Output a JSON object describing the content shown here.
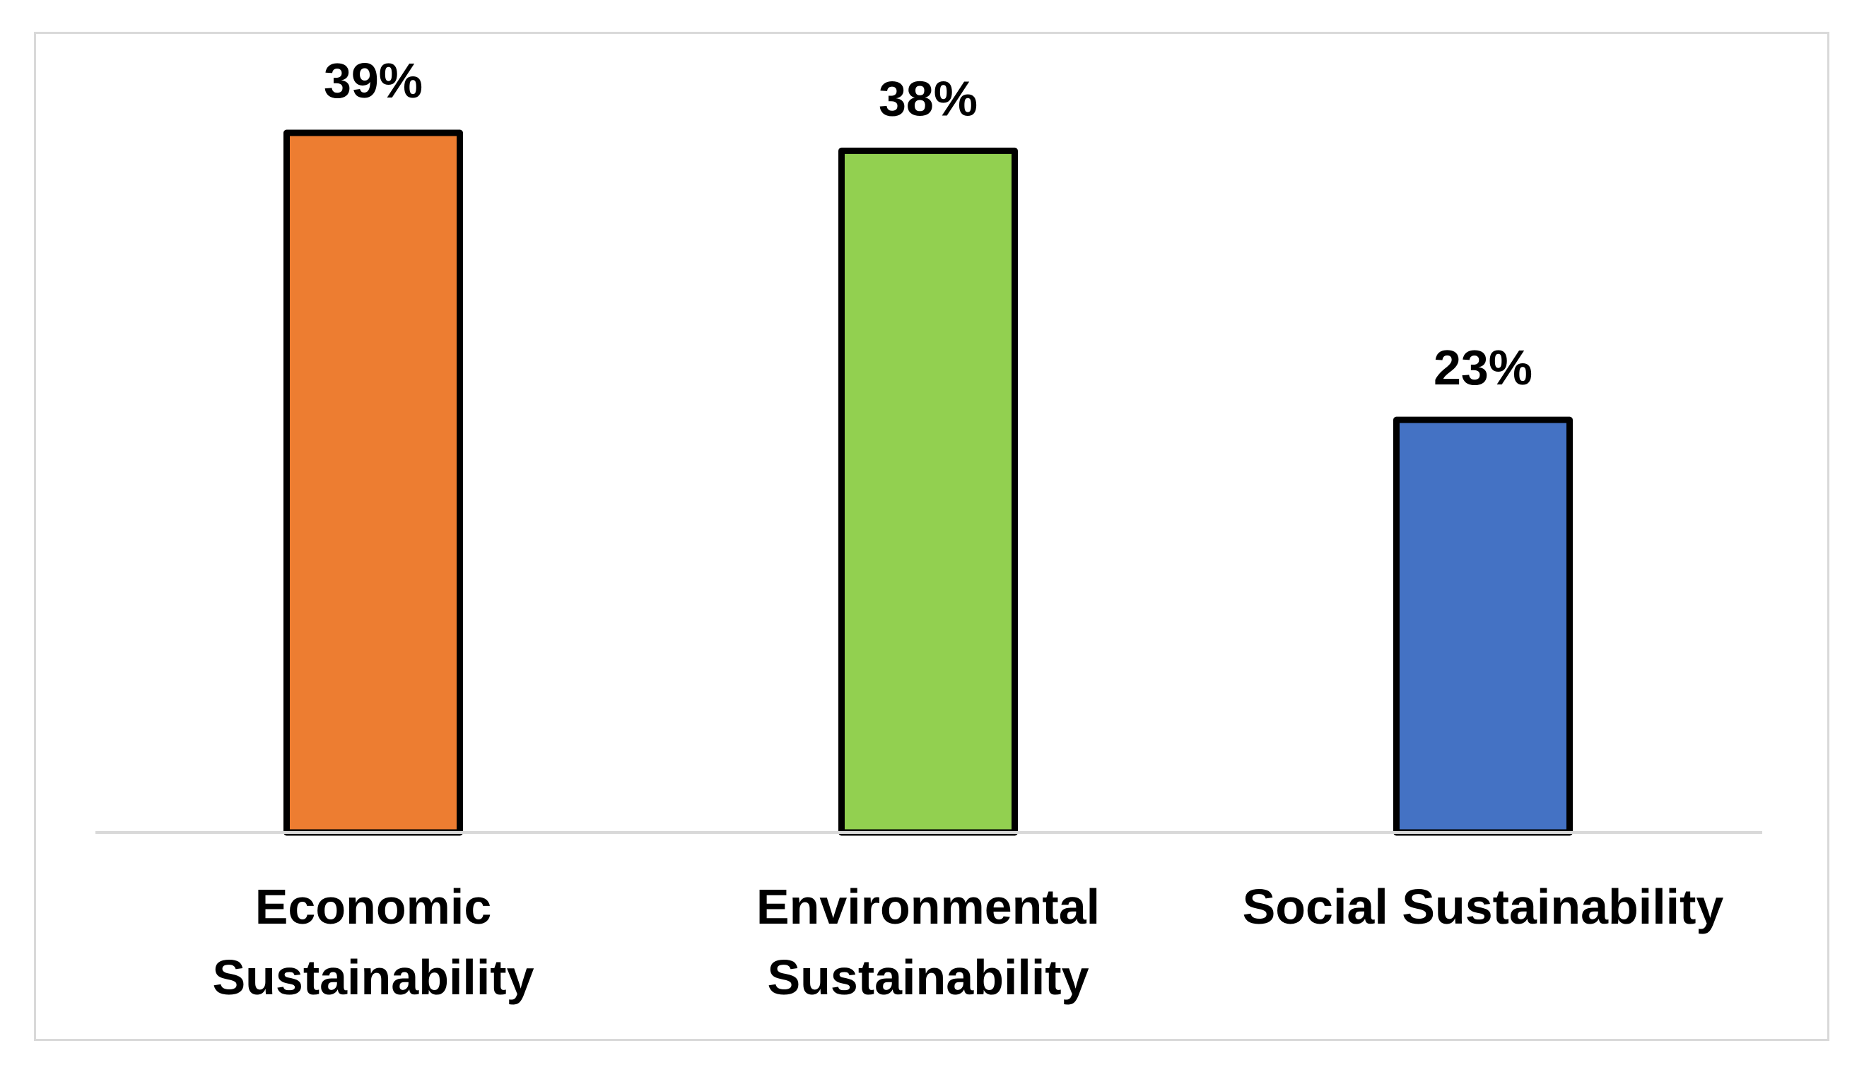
{
  "chart_data": {
    "type": "bar",
    "title": "",
    "xlabel": "",
    "ylabel": "",
    "ylim": [
      0,
      40
    ],
    "grid": false,
    "legend": "none",
    "categories": [
      "Economic Sustainability",
      "Environmental Sustainability",
      "Social Sustainability"
    ],
    "category_lines": [
      [
        "Economic",
        "Sustainability"
      ],
      [
        "Environmental",
        "Sustainability"
      ],
      [
        "Social Sustainability"
      ]
    ],
    "values": [
      39,
      38,
      23
    ],
    "data_labels": [
      "39%",
      "38%",
      "23%"
    ],
    "colors": [
      "#ED7D31",
      "#92D050",
      "#4472C4"
    ],
    "bar_outline_color": "#000000",
    "axis_color": "#d9d9d9"
  }
}
